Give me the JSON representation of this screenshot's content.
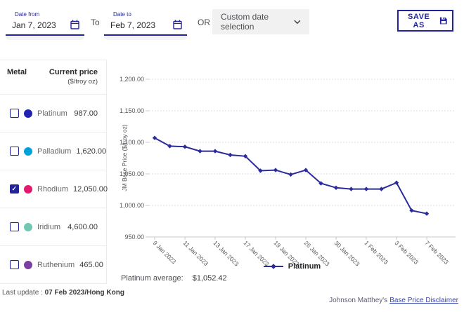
{
  "colors": {
    "primary": "#23239c",
    "line": "#2b2b9c",
    "link": "#3a47ae"
  },
  "toolbar": {
    "date_from": {
      "label": "Date from",
      "value": "Jan 7, 2023"
    },
    "to_label": "To",
    "date_to": {
      "label": "Date to",
      "value": "Feb 7, 2023"
    },
    "or_label": "OR",
    "custom_select": {
      "value": "Custom date selection"
    },
    "save_button": {
      "label": "SAVE AS"
    }
  },
  "sidebar": {
    "header": {
      "metal": "Metal",
      "price_line1": "Current price",
      "price_line2": "($/troy oz)"
    },
    "metals": [
      {
        "name": "Platinum",
        "price": "987.00",
        "color": "#2222b2",
        "checked": false
      },
      {
        "name": "Palladium",
        "price": "1,620.00",
        "color": "#00a2dc",
        "checked": false
      },
      {
        "name": "Rhodium",
        "price": "12,050.00",
        "color": "#e3196d",
        "checked": true
      },
      {
        "name": "Iridium",
        "price": "4,600.00",
        "color": "#72c7b2",
        "checked": false
      },
      {
        "name": "Ruthenium",
        "price": "465.00",
        "color": "#7a3fa0",
        "checked": false
      }
    ],
    "last_update_label": "Last update :",
    "last_update_value": "07 Feb 2023/Hong Kong"
  },
  "chart_data": {
    "type": "line",
    "ylabel": "JM Base Price ($/troy oz)",
    "ylim": [
      950,
      1200
    ],
    "yticks": [
      950,
      1000,
      1050,
      1100,
      1150,
      1200
    ],
    "grid": true,
    "x": [
      "9 Jan 2023",
      "10 Jan 2023",
      "11 Jan 2023",
      "12 Jan 2023",
      "13 Jan 2023",
      "16 Jan 2023",
      "17 Jan 2023",
      "18 Jan 2023",
      "19 Jan 2023",
      "20 Jan 2023",
      "26 Jan 2023",
      "27 Jan 2023",
      "30 Jan 2023",
      "31 Jan 2023",
      "1 Feb 2023",
      "2 Feb 2023",
      "3 Feb 2023",
      "6 Feb 2023",
      "7 Feb 2023"
    ],
    "xticks_shown": [
      "9 Jan 2023",
      "11 Jan 2023",
      "13 Jan 2023",
      "17 Jan 2023",
      "19 Jan 2023",
      "26 Jan 2023",
      "30 Jan 2023",
      "1 Feb 2023",
      "3 Feb 2023",
      "7 Feb 2023"
    ],
    "series": [
      {
        "name": "Platinum",
        "color": "#2b2b9c",
        "values": [
          1107,
          1094,
          1093,
          1086,
          1086,
          1080,
          1078,
          1055,
          1056,
          1049,
          1056,
          1035,
          1028,
          1026,
          1026,
          1026,
          1036,
          992,
          987
        ]
      }
    ],
    "legend": {
      "label": "Platinum",
      "position": "bottom"
    }
  },
  "chart_footer": {
    "average_label": "Platinum average:",
    "average_value": "$1,052.42"
  },
  "footer": {
    "prefix": "Johnson Matthey's",
    "link_label": "Base Price Disclaimer"
  }
}
